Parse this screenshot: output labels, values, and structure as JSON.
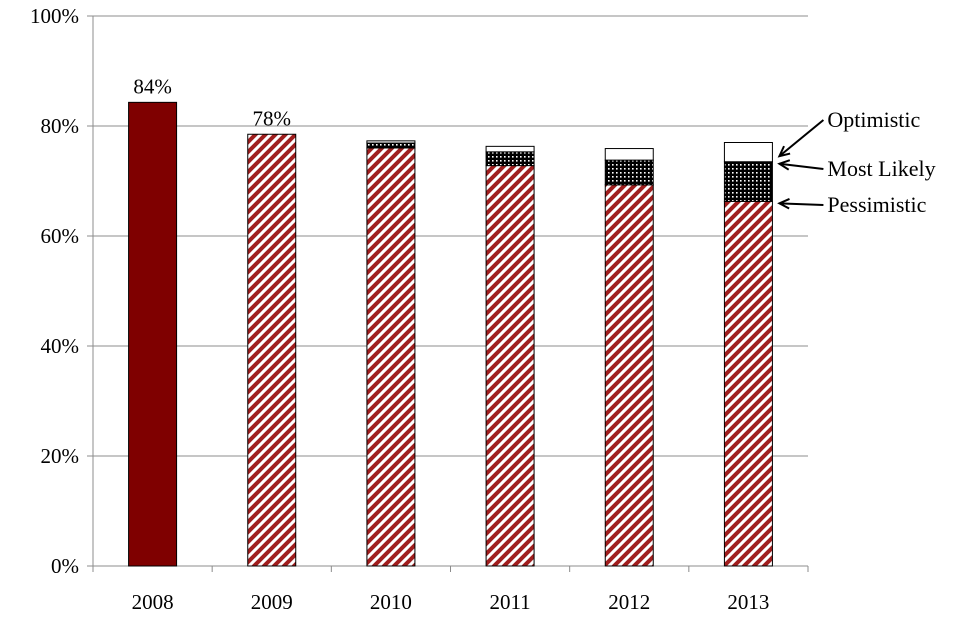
{
  "chart_data": {
    "type": "bar",
    "categories": [
      "2008",
      "2009",
      "2010",
      "2011",
      "2012",
      "2013"
    ],
    "series": [
      {
        "name": "Pessimistic",
        "values": [
          84.3,
          78.5,
          76.0,
          72.8,
          69.3,
          66.3
        ]
      },
      {
        "name": "Most Likely",
        "values": [
          0,
          0,
          0.9,
          2.5,
          4.5,
          7.2
        ]
      },
      {
        "name": "Optimistic",
        "values": [
          0,
          0,
          0.4,
          1.0,
          2.1,
          3.5
        ]
      }
    ],
    "data_labels": [
      {
        "category": "2008",
        "text": "84%"
      },
      {
        "category": "2009",
        "text": "78%"
      }
    ],
    "y_ticks": [
      "0%",
      "20%",
      "40%",
      "60%",
      "80%",
      "100%"
    ],
    "ylim": [
      0,
      100
    ],
    "grid": true,
    "stacked": true,
    "colors": {
      "solid": "#7f0000",
      "hatch": "#a01e1e",
      "dotted": "#000000",
      "optimistic_fill": "#ffffff"
    },
    "annotations": [
      {
        "text": "Optimistic",
        "series": "Optimistic"
      },
      {
        "text": "Most Likely",
        "series": "Most Likely"
      },
      {
        "text": "Pessimistic",
        "series": "Pessimistic"
      }
    ]
  }
}
